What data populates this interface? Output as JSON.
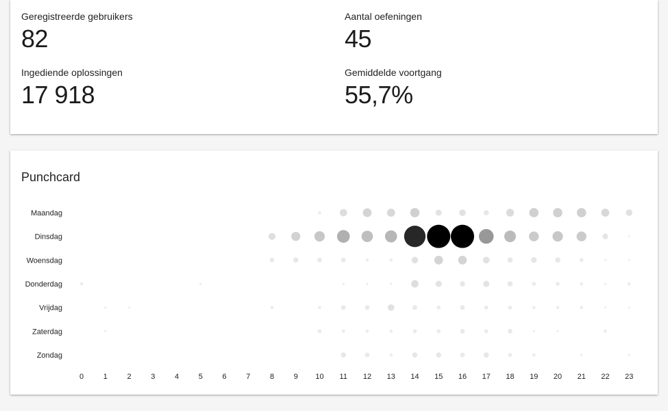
{
  "stats": {
    "registered_users": {
      "label": "Geregistreerde gebruikers",
      "value": "82"
    },
    "exercise_count": {
      "label": "Aantal oefeningen",
      "value": "45"
    },
    "submissions": {
      "label": "Ingediende oplossingen",
      "value": "17 918"
    },
    "avg_progress": {
      "label": "Gemiddelde voortgang",
      "value": "55,7%"
    }
  },
  "punchcard": {
    "title": "Punchcard",
    "dot_color": "#000000"
  },
  "chart_data": {
    "type": "scatter",
    "title": "Punchcard",
    "days": [
      "Maandag",
      "Dinsdag",
      "Woensdag",
      "Donderdag",
      "Vrijdag",
      "Zaterdag",
      "Zondag"
    ],
    "hours": [
      "0",
      "1",
      "2",
      "3",
      "4",
      "5",
      "6",
      "7",
      "8",
      "9",
      "10",
      "11",
      "12",
      "13",
      "14",
      "15",
      "16",
      "17",
      "18",
      "19",
      "20",
      "21",
      "22",
      "23"
    ],
    "values": [
      [
        0,
        0,
        0,
        0,
        0,
        0,
        0,
        0,
        0,
        0,
        2,
        10,
        14,
        12,
        16,
        7,
        8,
        5,
        11,
        16,
        16,
        16,
        12,
        8
      ],
      [
        0,
        0,
        0,
        0,
        0,
        0,
        0,
        0,
        9,
        15,
        20,
        30,
        24,
        27,
        85,
        100,
        100,
        40,
        25,
        18,
        20,
        18,
        6,
        1
      ],
      [
        0,
        0,
        0,
        0,
        0,
        0,
        0,
        0,
        4,
        5,
        4,
        4,
        2,
        2,
        8,
        14,
        14,
        8,
        5,
        6,
        5,
        3,
        1,
        1
      ],
      [
        2,
        0,
        0,
        0,
        0,
        1,
        0,
        0,
        0,
        0,
        0,
        1,
        1,
        1,
        10,
        7,
        5,
        7,
        5,
        3,
        3,
        2,
        1,
        2
      ],
      [
        0,
        1,
        1,
        0,
        0,
        0,
        0,
        0,
        2,
        0,
        2,
        4,
        4,
        8,
        4,
        3,
        4,
        3,
        3,
        2,
        2,
        2,
        1,
        1
      ],
      [
        0,
        1,
        0,
        0,
        0,
        0,
        0,
        0,
        0,
        0,
        3,
        2,
        2,
        2,
        3,
        3,
        4,
        3,
        4,
        1,
        1,
        0,
        2,
        0
      ],
      [
        0,
        0,
        0,
        0,
        0,
        0,
        0,
        0,
        0,
        0,
        0,
        5,
        4,
        2,
        5,
        5,
        4,
        5,
        3,
        2,
        0,
        1,
        0,
        1
      ]
    ],
    "legend": "none"
  }
}
